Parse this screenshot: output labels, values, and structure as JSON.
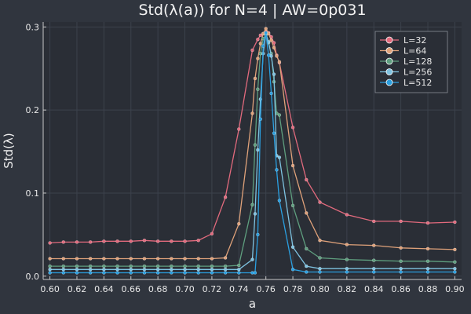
{
  "chart_data": {
    "type": "line",
    "title": "Std(λ(a)) for N=4 | AW=0p031",
    "xlabel": "a",
    "ylabel": "Std(λ)",
    "xlim": [
      0.595,
      0.905
    ],
    "ylim": [
      -0.004,
      0.306
    ],
    "xticks": [
      0.6,
      0.62,
      0.64,
      0.66,
      0.68,
      0.7,
      0.72,
      0.74,
      0.76,
      0.78,
      0.8,
      0.82,
      0.84,
      0.86,
      0.88,
      0.9
    ],
    "xtick_labels": [
      "0.60",
      "0.62",
      "0.64",
      "0.66",
      "0.68",
      "0.70",
      "0.72",
      "0.74",
      "0.76",
      "0.78",
      "0.80",
      "0.82",
      "0.84",
      "0.86",
      "0.88",
      "0.90"
    ],
    "yticks": [
      0.0,
      0.1,
      0.2,
      0.3
    ],
    "ytick_labels": [
      "0.0",
      "0.1",
      "0.2",
      "0.3"
    ],
    "grid": true,
    "legend_position": "top-right",
    "series": [
      {
        "name": "L=32",
        "color": "#e26a7d",
        "x": [
          0.6,
          0.61,
          0.62,
          0.63,
          0.64,
          0.65,
          0.66,
          0.67,
          0.68,
          0.69,
          0.7,
          0.71,
          0.72,
          0.73,
          0.74,
          0.75,
          0.754,
          0.756,
          0.758,
          0.76,
          0.762,
          0.764,
          0.766,
          0.768,
          0.77,
          0.78,
          0.79,
          0.8,
          0.82,
          0.84,
          0.86,
          0.88,
          0.9
        ],
        "y": [
          0.04,
          0.041,
          0.041,
          0.041,
          0.042,
          0.042,
          0.042,
          0.043,
          0.042,
          0.042,
          0.042,
          0.043,
          0.051,
          0.095,
          0.177,
          0.272,
          0.285,
          0.29,
          0.292,
          0.295,
          0.293,
          0.288,
          0.281,
          0.266,
          0.257,
          0.179,
          0.116,
          0.089,
          0.074,
          0.066,
          0.066,
          0.064,
          0.065
        ]
      },
      {
        "name": "L=64",
        "color": "#e0a27a",
        "x": [
          0.6,
          0.61,
          0.62,
          0.63,
          0.64,
          0.65,
          0.66,
          0.67,
          0.68,
          0.69,
          0.7,
          0.71,
          0.72,
          0.73,
          0.74,
          0.75,
          0.752,
          0.754,
          0.756,
          0.758,
          0.76,
          0.762,
          0.764,
          0.766,
          0.768,
          0.77,
          0.78,
          0.79,
          0.8,
          0.82,
          0.84,
          0.86,
          0.88,
          0.9
        ],
        "y": [
          0.021,
          0.021,
          0.021,
          0.021,
          0.021,
          0.021,
          0.021,
          0.021,
          0.021,
          0.021,
          0.021,
          0.021,
          0.021,
          0.022,
          0.063,
          0.196,
          0.238,
          0.262,
          0.28,
          0.292,
          0.298,
          0.292,
          0.284,
          0.275,
          0.265,
          0.258,
          0.133,
          0.076,
          0.043,
          0.038,
          0.037,
          0.034,
          0.033,
          0.032
        ]
      },
      {
        "name": "L=128",
        "color": "#5f9f7f",
        "x": [
          0.6,
          0.61,
          0.62,
          0.63,
          0.64,
          0.65,
          0.66,
          0.67,
          0.68,
          0.69,
          0.7,
          0.71,
          0.72,
          0.73,
          0.74,
          0.75,
          0.752,
          0.754,
          0.756,
          0.758,
          0.76,
          0.762,
          0.764,
          0.766,
          0.768,
          0.77,
          0.78,
          0.79,
          0.8,
          0.82,
          0.84,
          0.86,
          0.88,
          0.9
        ],
        "y": [
          0.012,
          0.012,
          0.012,
          0.012,
          0.012,
          0.012,
          0.012,
          0.012,
          0.012,
          0.012,
          0.012,
          0.012,
          0.012,
          0.012,
          0.013,
          0.086,
          0.158,
          0.225,
          0.268,
          0.286,
          0.29,
          0.281,
          0.268,
          0.234,
          0.196,
          0.194,
          0.085,
          0.033,
          0.022,
          0.02,
          0.019,
          0.018,
          0.018,
          0.017
        ]
      },
      {
        "name": "L=256",
        "color": "#7ec2e0",
        "x": [
          0.6,
          0.61,
          0.62,
          0.63,
          0.64,
          0.65,
          0.66,
          0.67,
          0.68,
          0.69,
          0.7,
          0.71,
          0.72,
          0.73,
          0.74,
          0.75,
          0.752,
          0.754,
          0.756,
          0.758,
          0.76,
          0.762,
          0.764,
          0.766,
          0.768,
          0.77,
          0.78,
          0.79,
          0.8,
          0.82,
          0.84,
          0.86,
          0.88,
          0.9
        ],
        "y": [
          0.008,
          0.008,
          0.008,
          0.008,
          0.008,
          0.008,
          0.008,
          0.008,
          0.008,
          0.008,
          0.008,
          0.008,
          0.008,
          0.008,
          0.008,
          0.02,
          0.075,
          0.152,
          0.213,
          0.268,
          0.292,
          0.282,
          0.265,
          0.243,
          0.145,
          0.143,
          0.035,
          0.012,
          0.009,
          0.009,
          0.009,
          0.009,
          0.009,
          0.009
        ]
      },
      {
        "name": "L=512",
        "color": "#2a9fe0",
        "x": [
          0.6,
          0.61,
          0.62,
          0.63,
          0.64,
          0.65,
          0.66,
          0.67,
          0.68,
          0.69,
          0.7,
          0.71,
          0.72,
          0.73,
          0.74,
          0.75,
          0.752,
          0.754,
          0.756,
          0.758,
          0.76,
          0.762,
          0.764,
          0.766,
          0.768,
          0.77,
          0.78,
          0.79,
          0.8,
          0.82,
          0.84,
          0.86,
          0.88,
          0.9
        ],
        "y": [
          0.004,
          0.004,
          0.004,
          0.004,
          0.004,
          0.004,
          0.004,
          0.004,
          0.004,
          0.004,
          0.004,
          0.004,
          0.004,
          0.004,
          0.004,
          0.004,
          0.004,
          0.05,
          0.189,
          0.277,
          0.293,
          0.266,
          0.22,
          0.172,
          0.128,
          0.091,
          0.008,
          0.005,
          0.005,
          0.005,
          0.005,
          0.005,
          0.005,
          0.005
        ]
      }
    ]
  }
}
